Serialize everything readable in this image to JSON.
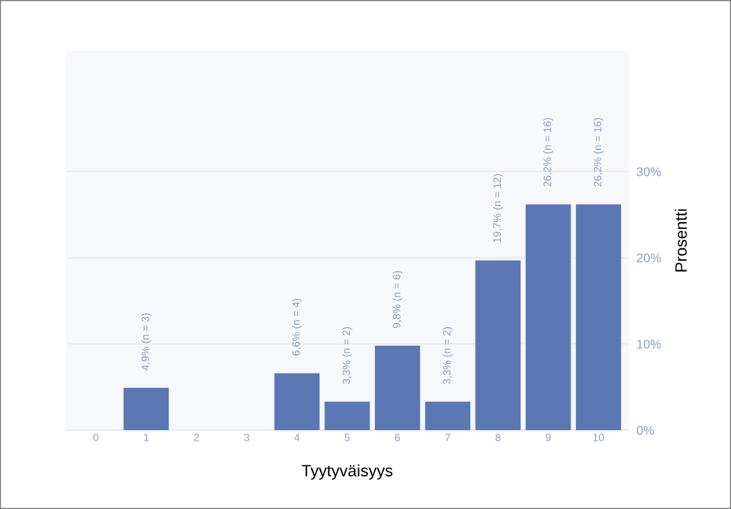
{
  "chart_data": {
    "type": "bar",
    "xlabel": "Tyytyväisyys",
    "ylabel": "Prosentti",
    "categories": [
      "0",
      "1",
      "2",
      "3",
      "4",
      "5",
      "6",
      "7",
      "8",
      "9",
      "10"
    ],
    "values": [
      0,
      4.9,
      0,
      0,
      6.6,
      3.3,
      9.8,
      3.3,
      19.7,
      26.2,
      26.2
    ],
    "value_labels": [
      null,
      "4,9% (n = 3)",
      null,
      null,
      "6,6% (n = 4)",
      "3,3% (n = 2)",
      "9,8% (n = 6)",
      "3,3% (n = 2)",
      "19,7% (n = 12)",
      "26,2% (n = 16)",
      "26,2% (n = 16)"
    ],
    "color": "#5b78b4",
    "ylim": [
      0,
      44
    ],
    "yticks": [
      {
        "value": 0,
        "label": "0%"
      },
      {
        "value": 10,
        "label": "10%"
      },
      {
        "value": 20,
        "label": "20%"
      },
      {
        "value": 30,
        "label": "30%"
      }
    ],
    "grid": "y",
    "legend": false
  }
}
